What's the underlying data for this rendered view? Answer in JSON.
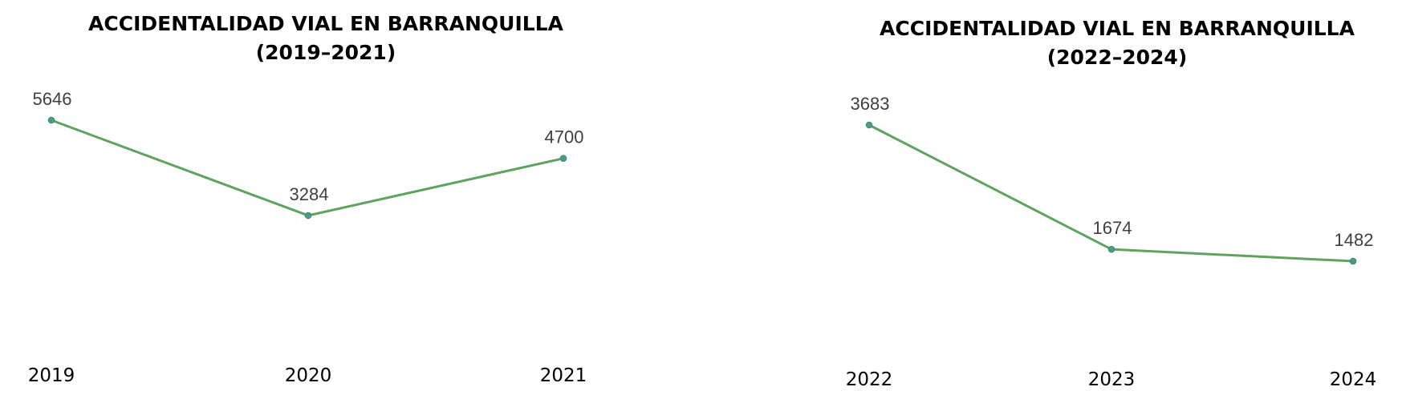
{
  "chart_data": [
    {
      "type": "line",
      "title_line1": "ACCIDENTALIDAD VIAL EN BARRANQUILLA",
      "title_line2": "(2019–2021)",
      "categories": [
        "2019",
        "2020",
        "2021"
      ],
      "values": [
        5646,
        3284,
        4700
      ],
      "data_labels": [
        "5646",
        "3284",
        "4700"
      ],
      "xlabel": "",
      "ylabel": "",
      "grid": false,
      "legend": "none",
      "line_color": "#5fa35f",
      "marker_color": "#4f9a86"
    },
    {
      "type": "line",
      "title_line1": "ACCIDENTALIDAD VIAL EN BARRANQUILLA",
      "title_line2": "(2022–2024)",
      "categories": [
        "2022",
        "2023",
        "2024"
      ],
      "values": [
        3683,
        1674,
        1482
      ],
      "data_labels": [
        "3683",
        "1674",
        "1482"
      ],
      "xlabel": "",
      "ylabel": "",
      "grid": false,
      "legend": "none",
      "line_color": "#5fa35f",
      "marker_color": "#4f9a86"
    }
  ]
}
